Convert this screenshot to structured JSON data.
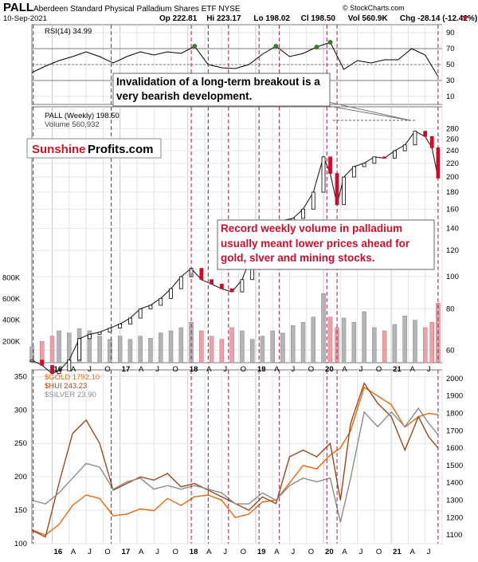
{
  "header": {
    "symbol": "PALL",
    "name": "Aberdeen Standard Physical Palladium Shares ETF NYSE",
    "date": "10-Sep-2021",
    "stats": [
      {
        "label": "Op",
        "value": "222.81"
      },
      {
        "label": "Hi",
        "value": "223.17"
      },
      {
        "label": "Lo",
        "value": "198.02"
      },
      {
        "label": "Cl",
        "value": "198.50"
      },
      {
        "label": "Vol",
        "value": "560.9K"
      },
      {
        "label": "Chg",
        "value": "-28.14 (-12.42%)"
      }
    ],
    "watermark": "© StockCharts.com"
  },
  "logo": {
    "part1": "Sunshine",
    "part2": "Profits.com",
    "part1_color": "#d0142c"
  },
  "annotations": {
    "breakout": "Invalidation of a long-term breakout is a very bearish development.",
    "volume": "Record weekly volume in palladium usually meant lower prices ahead for gold, slver and mining stocks."
  },
  "colors": {
    "candle_up": "#000000",
    "candle_down": "#c8102e",
    "volume_up": "#b4b4b4",
    "volume_down": "#e9a3a8",
    "rsi_fill": "#3a7d2c",
    "marker_line": "#9e1a4e",
    "gold": "#e8680c",
    "hui": "#9a4a1e",
    "silver": "#8c8c8c",
    "annotation_red": "#c8102e"
  },
  "chart_data": [
    {
      "type": "line",
      "title": "RSI(14) 34.99",
      "ylim": [
        0,
        100
      ],
      "ticks": [
        10,
        30,
        50,
        70,
        90
      ],
      "reference_levels": [
        30,
        50,
        70
      ],
      "x": [
        2015.7,
        2015.9,
        2016.1,
        2016.3,
        2016.5,
        2016.7,
        2016.9,
        2017.1,
        2017.3,
        2017.5,
        2017.7,
        2017.9,
        2018.1,
        2018.3,
        2018.5,
        2018.7,
        2018.9,
        2019.1,
        2019.3,
        2019.5,
        2019.7,
        2019.9,
        2020.1,
        2020.3,
        2020.5,
        2020.7,
        2020.9,
        2021.1,
        2021.3,
        2021.5,
        2021.69
      ],
      "values": [
        40,
        48,
        55,
        60,
        66,
        60,
        52,
        60,
        66,
        62,
        66,
        64,
        73,
        50,
        46,
        45,
        50,
        63,
        73,
        60,
        64,
        72,
        78,
        44,
        55,
        52,
        56,
        56,
        70,
        62,
        35
      ]
    },
    {
      "type": "candlestick",
      "title": "PALL (Weekly) 198.50",
      "volume_label": "Volume 560,932",
      "ylim": [
        55,
        290
      ],
      "price_ticks": [
        60,
        80,
        100,
        120,
        140,
        160,
        180,
        200,
        220,
        240,
        260,
        280
      ],
      "volume_ticks": [
        {
          "value": 200000,
          "label": "200K"
        },
        {
          "value": 400000,
          "label": "400K"
        },
        {
          "value": 600000,
          "label": "600K"
        },
        {
          "value": 800000,
          "label": "800K"
        }
      ],
      "x": [
        2015.7,
        2015.85,
        2016.0,
        2016.1,
        2016.25,
        2016.4,
        2016.55,
        2016.7,
        2016.85,
        2017.0,
        2017.15,
        2017.3,
        2017.45,
        2017.6,
        2017.75,
        2017.9,
        2018.05,
        2018.2,
        2018.35,
        2018.5,
        2018.65,
        2018.8,
        2018.95,
        2019.1,
        2019.25,
        2019.4,
        2019.55,
        2019.7,
        2019.85,
        2020.0,
        2020.1,
        2020.2,
        2020.3,
        2020.45,
        2020.6,
        2020.75,
        2020.9,
        2021.05,
        2021.2,
        2021.35,
        2021.5,
        2021.6,
        2021.69
      ],
      "close": [
        56,
        54,
        51,
        52,
        56,
        65,
        67,
        68,
        70,
        72,
        75,
        80,
        82,
        86,
        92,
        100,
        106,
        98,
        95,
        92,
        90,
        98,
        118,
        128,
        140,
        148,
        150,
        160,
        180,
        230,
        205,
        165,
        200,
        215,
        220,
        230,
        228,
        240,
        250,
        275,
        265,
        245,
        198.5
      ],
      "volume": [
        150000,
        200000,
        250000,
        300000,
        280000,
        320000,
        300000,
        250000,
        220000,
        250000,
        220000,
        250000,
        230000,
        280000,
        300000,
        330000,
        380000,
        300000,
        250000,
        220000,
        330000,
        300000,
        220000,
        250000,
        300000,
        280000,
        350000,
        380000,
        430000,
        650000,
        430000,
        330000,
        420000,
        380000,
        480000,
        330000,
        300000,
        360000,
        440000,
        400000,
        330000,
        380000,
        560932
      ]
    },
    {
      "type": "line",
      "ylim": [
        100,
        360
      ],
      "right_ylim": [
        1050,
        2050
      ],
      "left_ticks": [
        100,
        150,
        200,
        250,
        300,
        350
      ],
      "right_ticks": [
        1100,
        1200,
        1300,
        1400,
        1500,
        1600,
        1700,
        1800,
        1900,
        2000
      ],
      "x": [
        2015.7,
        2015.9,
        2016.1,
        2016.3,
        2016.5,
        2016.7,
        2016.9,
        2017.1,
        2017.3,
        2017.5,
        2017.7,
        2017.9,
        2018.1,
        2018.3,
        2018.5,
        2018.7,
        2018.9,
        2019.1,
        2019.3,
        2019.5,
        2019.7,
        2019.9,
        2020.1,
        2020.25,
        2020.4,
        2020.6,
        2020.8,
        2021.0,
        2021.2,
        2021.4,
        2021.55,
        2021.69
      ],
      "series": [
        {
          "name": "$GOLD 1792.10",
          "values": [
            1130,
            1100,
            1160,
            1270,
            1330,
            1310,
            1210,
            1220,
            1250,
            1240,
            1310,
            1270,
            1320,
            1330,
            1300,
            1200,
            1220,
            1290,
            1300,
            1400,
            1500,
            1480,
            1560,
            1600,
            1700,
            1950,
            1900,
            1850,
            1720,
            1780,
            1800,
            1792.1
          ]
        },
        {
          "name": "$HUI 243.23",
          "values": [
            120,
            110,
            190,
            265,
            285,
            250,
            180,
            190,
            200,
            195,
            205,
            185,
            190,
            180,
            170,
            160,
            150,
            170,
            160,
            230,
            240,
            230,
            250,
            165,
            280,
            340,
            310,
            290,
            240,
            290,
            260,
            243.23
          ]
        },
        {
          "name": "$SILVER 23.90",
          "values": [
            15,
            14.5,
            16,
            18,
            20,
            19.5,
            16.5,
            17.5,
            18,
            16.5,
            17,
            16.5,
            17,
            16.5,
            16,
            14.5,
            14.5,
            16,
            15,
            17,
            18,
            17.5,
            18,
            12,
            18,
            27,
            25,
            27,
            25,
            27.5,
            25.5,
            23.9
          ]
        }
      ]
    }
  ],
  "x_axis_labels": [
    "16",
    "A",
    "J",
    "O",
    "17",
    "A",
    "J",
    "O",
    "18",
    "A",
    "J",
    "O",
    "19",
    "A",
    "J",
    "O",
    "20",
    "A",
    "J",
    "O",
    "21",
    "A",
    "J"
  ]
}
